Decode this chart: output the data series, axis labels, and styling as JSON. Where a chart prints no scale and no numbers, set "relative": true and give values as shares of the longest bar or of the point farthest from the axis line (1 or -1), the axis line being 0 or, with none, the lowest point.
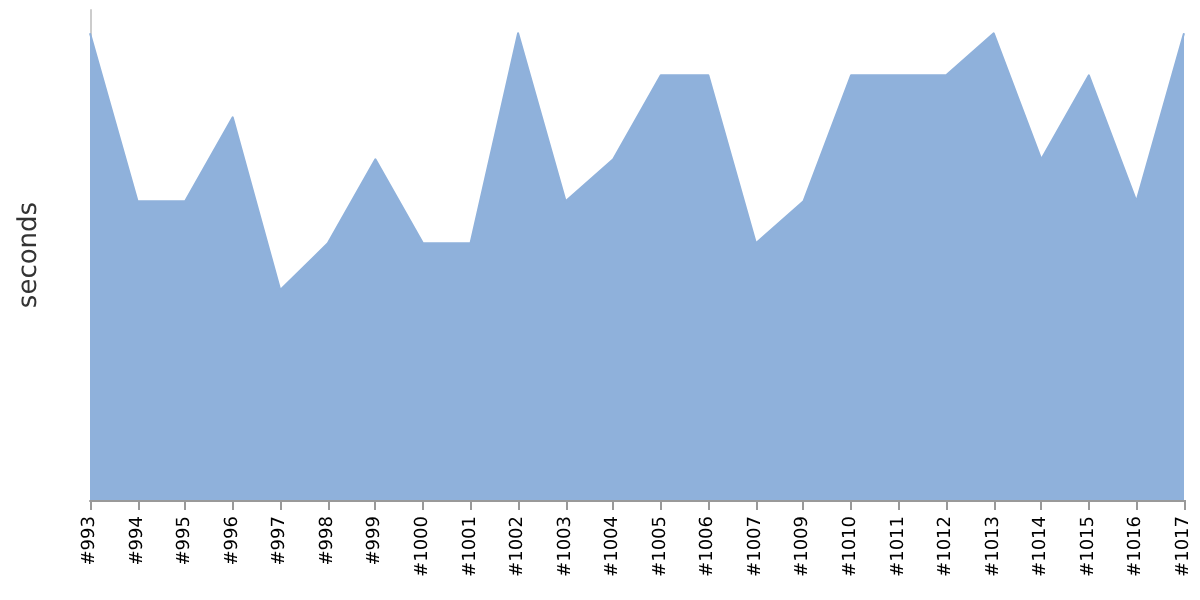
{
  "chart_data": {
    "type": "area",
    "ylabel": "seconds",
    "relative": true,
    "categories": [
      "#993",
      "#994",
      "#995",
      "#996",
      "#997",
      "#998",
      "#999",
      "#1000",
      "#1001",
      "#1002",
      "#1003",
      "#1004",
      "#1005",
      "#1006",
      "#1007",
      "#1009",
      "#1010",
      "#1011",
      "#1012",
      "#1013",
      "#1014",
      "#1015",
      "#1016",
      "#1017"
    ],
    "series": [
      {
        "color": "#8fb1db",
        "values": [
          1,
          0.64,
          0.64,
          0.82,
          0.45,
          0.55,
          0.73,
          0.55,
          0.55,
          1,
          0.64,
          0.73,
          0.91,
          0.91,
          0.55,
          0.64,
          0.91,
          0.91,
          0.91,
          1,
          0.73,
          0.91,
          0.64,
          1
        ]
      }
    ],
    "grid": false
  }
}
